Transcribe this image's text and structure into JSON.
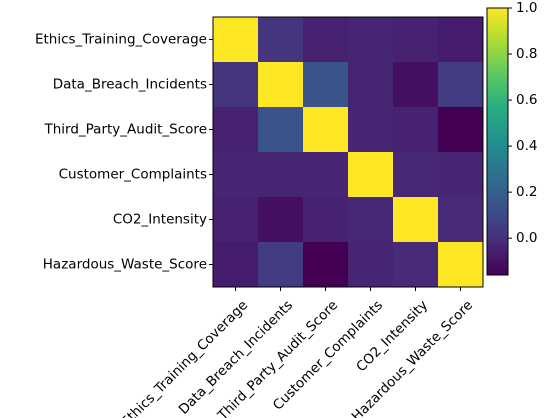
{
  "chart_data": {
    "type": "heatmap",
    "title": "",
    "xlabel": "",
    "ylabel": "",
    "rows": [
      "Ethics_Training_Coverage",
      "Data_Breach_Incidents",
      "Third_Party_Audit_Score",
      "Customer_Complaints",
      "CO2_Intensity",
      "Hazardous_Waste_Score"
    ],
    "columns": [
      "Ethics_Training_Coverage",
      "Data_Breach_Incidents",
      "Third_Party_Audit_Score",
      "Customer_Complaints",
      "CO2_Intensity",
      "Hazardous_Waste_Score"
    ],
    "values": [
      [
        1.0,
        0.02,
        -0.05,
        -0.04,
        -0.05,
        -0.07
      ],
      [
        0.02,
        1.0,
        0.14,
        -0.04,
        -0.11,
        0.05
      ],
      [
        -0.05,
        0.14,
        1.0,
        -0.04,
        -0.05,
        -0.16
      ],
      [
        -0.04,
        -0.04,
        -0.04,
        1.0,
        -0.03,
        -0.04
      ],
      [
        -0.05,
        -0.11,
        -0.05,
        -0.03,
        1.0,
        -0.02
      ],
      [
        -0.07,
        0.05,
        -0.16,
        -0.04,
        -0.02,
        1.0
      ]
    ],
    "colormap": "viridis",
    "colorbar": {
      "vmin": -0.16,
      "vmax": 1.0,
      "ticks": [
        "0.0",
        "0.2",
        "0.4",
        "0.6",
        "0.8",
        "1.0"
      ],
      "tick_values": [
        0.0,
        0.2,
        0.4,
        0.6,
        0.8,
        1.0
      ]
    }
  }
}
